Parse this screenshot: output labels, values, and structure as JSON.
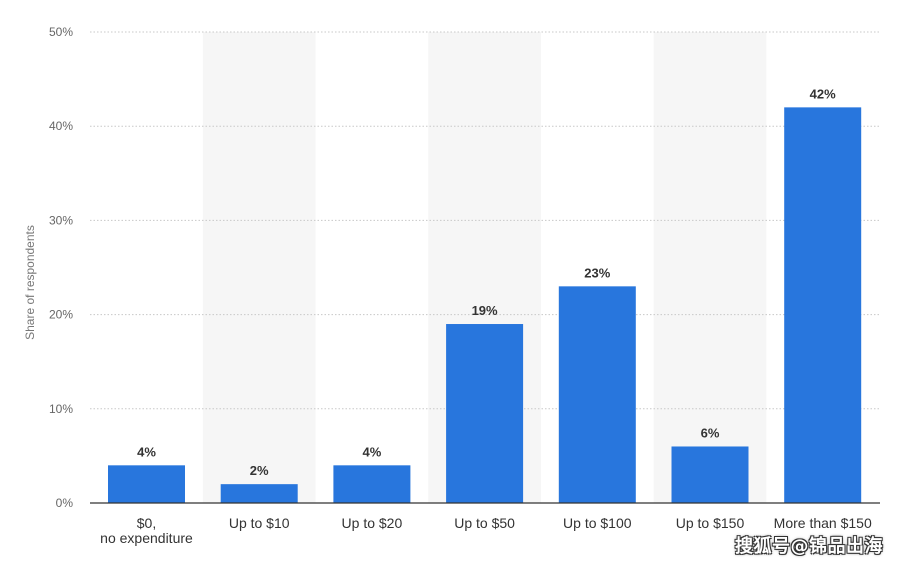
{
  "chart_data": {
    "type": "bar",
    "categories": [
      "$0, no expenditure",
      "Up to $10",
      "Up to $20",
      "Up to $50",
      "Up to $100",
      "Up to $150",
      "More than $150"
    ],
    "values": [
      4,
      2,
      4,
      19,
      23,
      6,
      42
    ],
    "data_labels": [
      "4%",
      "2%",
      "4%",
      "19%",
      "23%",
      "6%",
      "42%"
    ],
    "ylabel": "Share of respondents",
    "xlabel": "",
    "ylim": [
      0,
      50
    ],
    "yticks": [
      0,
      10,
      20,
      30,
      40,
      50
    ],
    "ytick_labels": [
      "0%",
      "10%",
      "20%",
      "30%",
      "40%",
      "50%"
    ],
    "grid": true,
    "alternating_column_shading": true,
    "colors": {
      "bar": "#2876dd",
      "grid": "#c8c8c8",
      "shade": "#f6f6f6",
      "axis": "#333333",
      "label": "#333333",
      "tick": "#666666"
    }
  },
  "watermark": "搜狐号@锦品出海"
}
